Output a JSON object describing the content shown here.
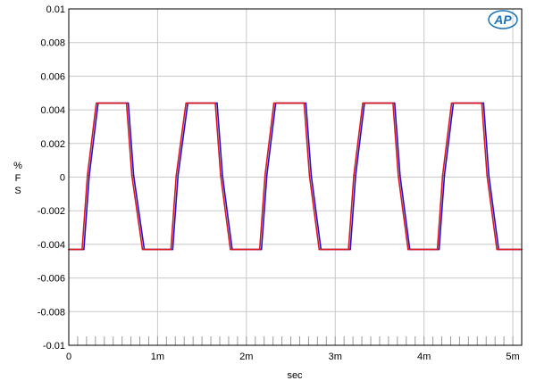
{
  "logo": {
    "text": "AP",
    "color": "#1a73b8"
  },
  "chart_data": {
    "type": "line",
    "xlabel": "sec",
    "ylabel": [
      "%",
      "F",
      "S"
    ],
    "xlim": [
      0,
      0.0051
    ],
    "ylim": [
      -0.01,
      0.01
    ],
    "grid": true,
    "x_ticks": [
      {
        "value": 0,
        "label": "0"
      },
      {
        "value": 0.001,
        "label": "1m"
      },
      {
        "value": 0.002,
        "label": "2m"
      },
      {
        "value": 0.003,
        "label": "3m"
      },
      {
        "value": 0.004,
        "label": "4m"
      },
      {
        "value": 0.005,
        "label": "5m"
      }
    ],
    "y_ticks": [
      {
        "value": 0.01,
        "label": "0.01"
      },
      {
        "value": 0.008,
        "label": "0.008"
      },
      {
        "value": 0.006,
        "label": "0.006"
      },
      {
        "value": 0.004,
        "label": "0.004"
      },
      {
        "value": 0.002,
        "label": "0.002"
      },
      {
        "value": 0,
        "label": "0"
      },
      {
        "value": -0.002,
        "label": "-0.002"
      },
      {
        "value": -0.004,
        "label": "-0.004"
      },
      {
        "value": -0.006,
        "label": "-0.006"
      },
      {
        "value": -0.008,
        "label": "-0.008"
      },
      {
        "value": -0.01,
        "label": "-0.01"
      }
    ],
    "series": [
      {
        "color": "#1515e0",
        "x": [
          0,
          0.00017,
          0.00023,
          0.00033,
          0.00067,
          0.00073,
          0.00085,
          0.00117,
          0.00123,
          0.00134,
          0.00167,
          0.00173,
          0.00184,
          0.00217,
          0.00223,
          0.00233,
          0.00267,
          0.00273,
          0.00284,
          0.00317,
          0.00323,
          0.00333,
          0.00367,
          0.00373,
          0.00384,
          0.00417,
          0.00423,
          0.00433,
          0.00467,
          0.00473,
          0.00484,
          0.0051
        ],
        "y": [
          -0.0043,
          -0.0043,
          0.0001,
          0.0044,
          0.0044,
          0.0001,
          -0.0043,
          -0.0043,
          0.0001,
          0.0044,
          0.0044,
          0.0001,
          -0.0043,
          -0.0043,
          0.0001,
          0.0044,
          0.0044,
          0.0001,
          -0.0043,
          -0.0043,
          0.0001,
          0.0044,
          0.0044,
          0.0001,
          -0.0043,
          -0.0043,
          0.0001,
          0.0044,
          0.0044,
          0.0001,
          -0.0043,
          -0.0043
        ]
      },
      {
        "color": "#e01515",
        "x": [
          0,
          0.00015,
          0.00021,
          0.00031,
          0.00065,
          0.00071,
          0.00083,
          0.00115,
          0.00121,
          0.00132,
          0.00165,
          0.00171,
          0.00182,
          0.00215,
          0.00221,
          0.00231,
          0.00265,
          0.00271,
          0.00282,
          0.00315,
          0.00321,
          0.00331,
          0.00365,
          0.00371,
          0.00382,
          0.00415,
          0.00421,
          0.00431,
          0.00465,
          0.00471,
          0.00482,
          0.0051
        ],
        "y": [
          -0.0043,
          -0.0043,
          0.0001,
          0.0044,
          0.0044,
          0.0001,
          -0.0043,
          -0.0043,
          0.0001,
          0.0044,
          0.0044,
          0.0001,
          -0.0043,
          -0.0043,
          0.0001,
          0.0044,
          0.0044,
          0.0001,
          -0.0043,
          -0.0043,
          0.0001,
          0.0044,
          0.0044,
          0.0001,
          -0.0043,
          -0.0043,
          0.0001,
          0.0044,
          0.0044,
          0.0001,
          -0.0043,
          -0.0043
        ]
      }
    ]
  }
}
